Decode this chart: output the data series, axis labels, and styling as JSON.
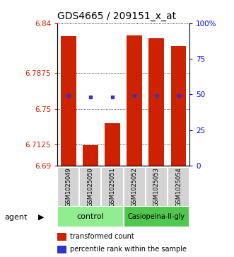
{
  "title": "GDS4665 / 209151_x_at",
  "samples": [
    "GSM1025049",
    "GSM1025050",
    "GSM1025051",
    "GSM1025052",
    "GSM1025053",
    "GSM1025054"
  ],
  "bar_tops": [
    6.826,
    6.712,
    6.735,
    6.827,
    6.824,
    6.816
  ],
  "bar_base": 6.69,
  "blue_dot_y": [
    6.764,
    6.762,
    6.762,
    6.764,
    6.764,
    6.764
  ],
  "bar_color": "#CC2200",
  "dot_color": "#3333CC",
  "ylim": [
    6.69,
    6.84
  ],
  "yticks_left": [
    6.84,
    6.7875,
    6.75,
    6.7125,
    6.69
  ],
  "yticks_right": [
    100,
    75,
    50,
    25,
    0
  ],
  "right_ylim": [
    0,
    100
  ],
  "bar_width": 0.7,
  "legend_bar_label": "transformed count",
  "legend_dot_label": "percentile rank within the sample",
  "title_fontsize": 10,
  "tick_fontsize": 7.5,
  "sample_fontsize": 6,
  "group_fontsize": 8,
  "legend_fontsize": 7
}
